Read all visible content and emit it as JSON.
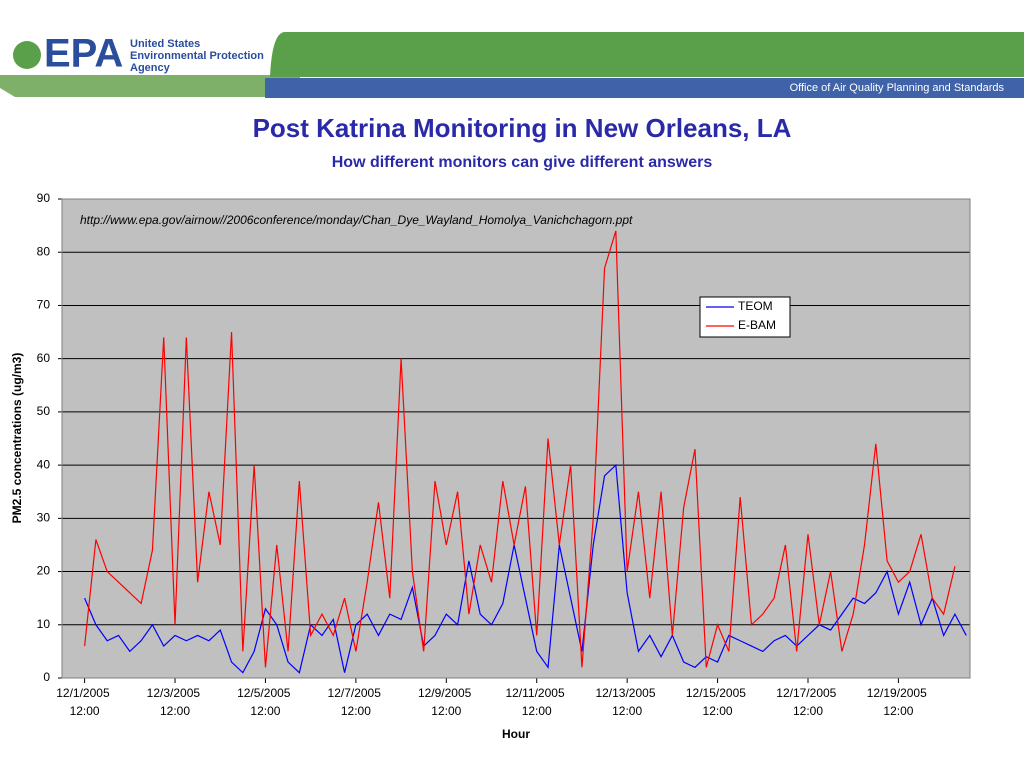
{
  "header": {
    "logo": "EPA",
    "agency": [
      "United States",
      "Environmental Protection",
      "Agency"
    ],
    "office": "Office of Air Quality Planning and Standards"
  },
  "chart_data": {
    "type": "line",
    "title": "Post Katrina Monitoring in New Orleans, LA",
    "subtitle": "How different monitors can give different answers",
    "annotation": "http://www.epa.gov/airnow//2006conference/monday/Chan_Dye_Wayland_Homolya_Vanichchagorn.ppt",
    "xlabel": "Hour",
    "ylabel": "PM2.5 concentrations (ug/m3)",
    "x": [
      "12/1/2005 12:00",
      "12/1/2005 18:00",
      "12/2/2005 00:00",
      "12/2/2005 06:00",
      "12/2/2005 12:00",
      "12/2/2005 18:00",
      "12/3/2005 00:00",
      "12/3/2005 06:00",
      "12/3/2005 12:00",
      "12/3/2005 18:00",
      "12/4/2005 00:00",
      "12/4/2005 06:00",
      "12/4/2005 12:00",
      "12/4/2005 18:00",
      "12/5/2005 00:00",
      "12/5/2005 06:00",
      "12/5/2005 12:00",
      "12/5/2005 18:00",
      "12/6/2005 00:00",
      "12/6/2005 06:00",
      "12/6/2005 12:00",
      "12/6/2005 18:00",
      "12/7/2005 00:00",
      "12/7/2005 06:00",
      "12/7/2005 12:00",
      "12/7/2005 18:00",
      "12/8/2005 00:00",
      "12/8/2005 06:00",
      "12/8/2005 12:00",
      "12/8/2005 18:00",
      "12/9/2005 00:00",
      "12/9/2005 06:00",
      "12/9/2005 12:00",
      "12/9/2005 18:00",
      "12/10/2005 00:00",
      "12/10/2005 06:00",
      "12/10/2005 12:00",
      "12/10/2005 18:00",
      "12/11/2005 00:00",
      "12/11/2005 06:00",
      "12/11/2005 12:00",
      "12/11/2005 18:00",
      "12/12/2005 00:00",
      "12/12/2005 06:00",
      "12/12/2005 12:00",
      "12/12/2005 18:00",
      "12/13/2005 00:00",
      "12/13/2005 06:00",
      "12/13/2005 12:00",
      "12/13/2005 18:00",
      "12/14/2005 00:00",
      "12/14/2005 06:00",
      "12/14/2005 12:00",
      "12/14/2005 18:00",
      "12/15/2005 00:00",
      "12/15/2005 06:00",
      "12/15/2005 12:00",
      "12/15/2005 18:00",
      "12/16/2005 00:00",
      "12/16/2005 06:00",
      "12/16/2005 12:00",
      "12/16/2005 18:00",
      "12/17/2005 00:00",
      "12/17/2005 06:00",
      "12/17/2005 12:00",
      "12/17/2005 18:00",
      "12/18/2005 00:00",
      "12/18/2005 06:00",
      "12/18/2005 12:00",
      "12/18/2005 18:00",
      "12/19/2005 00:00",
      "12/19/2005 06:00",
      "12/19/2005 12:00",
      "12/19/2005 18:00",
      "12/20/2005 00:00",
      "12/20/2005 06:00",
      "12/20/2005 12:00",
      "12/20/2005 18:00",
      "12/21/2005 00:00"
    ],
    "series": [
      {
        "name": "TEOM",
        "color": "#0000ff",
        "values": [
          15,
          10,
          7,
          8,
          5,
          7,
          10,
          6,
          8,
          7,
          8,
          7,
          9,
          3,
          1,
          5,
          13,
          10,
          3,
          1,
          10,
          8,
          11,
          1,
          10,
          12,
          8,
          12,
          11,
          17,
          6,
          8,
          12,
          10,
          22,
          12,
          10,
          14,
          25,
          15,
          5,
          2,
          25,
          15,
          5,
          25,
          38,
          40,
          16,
          5,
          8,
          4,
          8,
          3,
          2,
          4,
          3,
          8,
          7,
          6,
          5,
          7,
          8,
          6,
          8,
          10,
          9,
          12,
          15,
          14,
          16,
          20,
          12,
          18,
          10,
          15,
          8,
          12,
          8
        ]
      },
      {
        "name": "E-BAM",
        "color": "#ff0000",
        "values": [
          6,
          26,
          20,
          18,
          16,
          14,
          24,
          64,
          10,
          64,
          18,
          35,
          25,
          65,
          5,
          40,
          2,
          25,
          5,
          37,
          8,
          12,
          8,
          15,
          5,
          18,
          33,
          15,
          60,
          20,
          5,
          37,
          25,
          35,
          12,
          25,
          18,
          37,
          25,
          36,
          8,
          45,
          25,
          40,
          2,
          30,
          77,
          84,
          20,
          35,
          15,
          35,
          8,
          32,
          43,
          2,
          10,
          5,
          34,
          10,
          12,
          15,
          25,
          5,
          27,
          10,
          20,
          5,
          12,
          25,
          44,
          22,
          18,
          20,
          27,
          15,
          12,
          21,
          null
        ]
      }
    ],
    "xlim": [
      "12/1/2005 00:00",
      "12/21/2005 02:00"
    ],
    "xticks": [
      "12/1/2005 12:00",
      "12/3/2005 12:00",
      "12/5/2005 12:00",
      "12/7/2005 12:00",
      "12/9/2005 12:00",
      "12/11/2005 12:00",
      "12/13/2005 12:00",
      "12/15/2005 12:00",
      "12/17/2005 12:00",
      "12/19/2005 12:00"
    ],
    "ylim": [
      0,
      90
    ],
    "yticks": [
      0,
      10,
      20,
      30,
      40,
      50,
      60,
      70,
      80,
      90
    ],
    "grid": true,
    "legend": "upper right"
  }
}
